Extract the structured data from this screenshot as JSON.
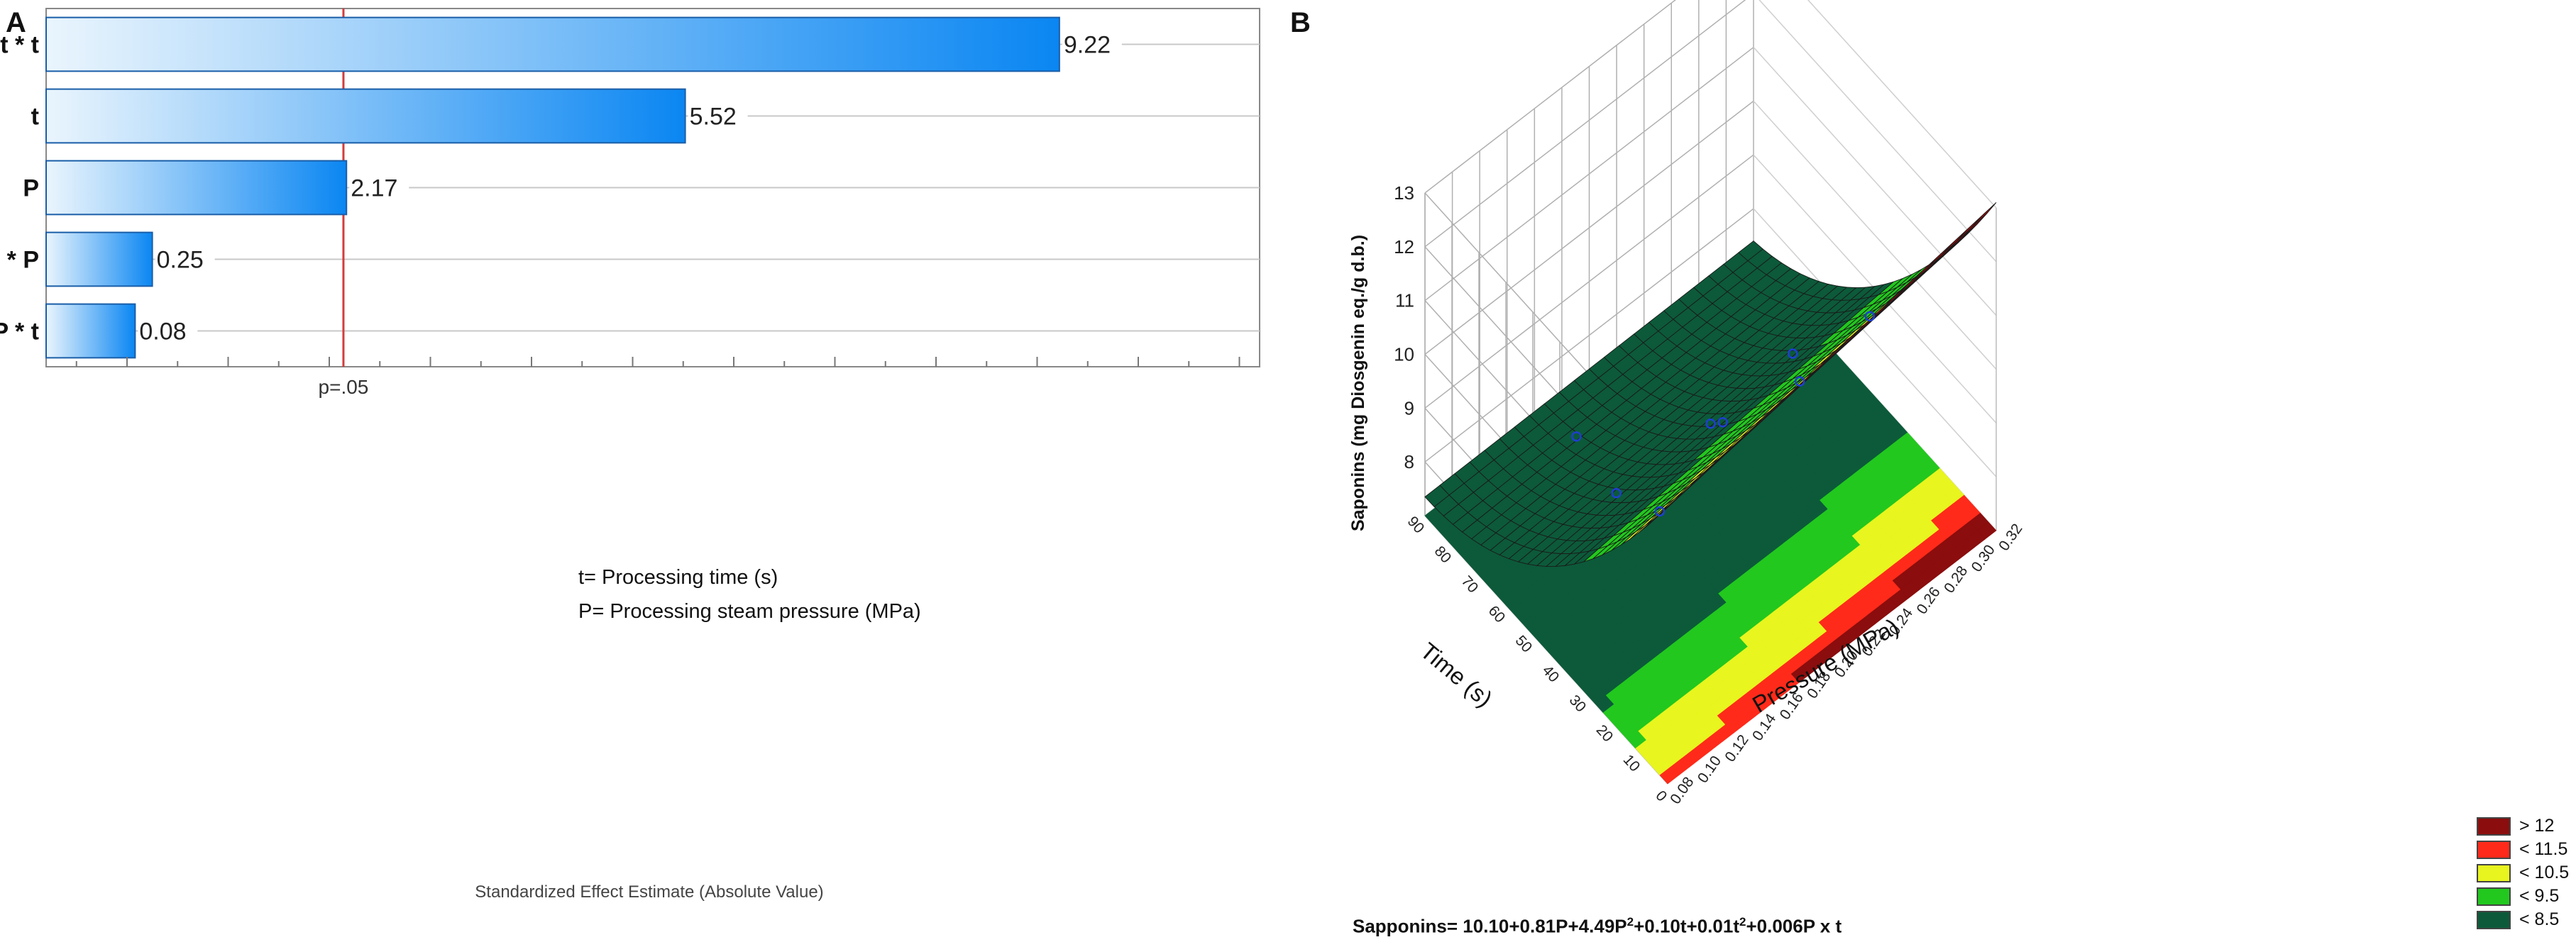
{
  "panels": {
    "a_label": "A",
    "b_label": "B"
  },
  "chart_data": [
    {
      "type": "bar",
      "orientation": "horizontal",
      "title": "",
      "categories": [
        "t * t",
        "t",
        "P",
        "P * P",
        "P * t"
      ],
      "values": [
        9.22,
        5.52,
        2.17,
        0.25,
        0.08
      ],
      "value_labels": [
        "9.22",
        "5.52",
        "2.17",
        "0.25",
        "0.08"
      ],
      "xlabel": "Standardized Effect Estimate (Absolute Value)",
      "ylabel": "",
      "xlim": [
        -0.8,
        11.2
      ],
      "reference_line": {
        "value": 2.14,
        "label": "p=.05",
        "color": "#d33c3c"
      },
      "legend_notes": [
        "t= Processing time (s)",
        "P= Processing steam pressure (MPa)"
      ],
      "grid": true,
      "bar_gradient": [
        "#eaf5fd",
        "#0a86f2"
      ]
    },
    {
      "type": "surface3d",
      "zlabel": "Saponins (mg Diosgenin eq./g d.b.)",
      "xlabel": "Pressure (MPa)",
      "ylabel": "Time (s)",
      "z_ticks": [
        "8",
        "9",
        "10",
        "11",
        "12",
        "13"
      ],
      "x_ticks": [
        "0.08",
        "0.10",
        "0.12",
        "0.14",
        "0.16",
        "0.18",
        "0.20",
        "0.22",
        "0.24",
        "0.26",
        "0.28",
        "0.30",
        "0.32"
      ],
      "y_ticks": [
        "0",
        "10",
        "20",
        "30",
        "40",
        "50",
        "60",
        "70",
        "80",
        "90"
      ],
      "zlim": [
        7,
        13
      ],
      "legend": [
        {
          "label": "> 12",
          "color": "#8b0d0d"
        },
        {
          "label": "< 11.5",
          "color": "#ff2a1a"
        },
        {
          "label": "< 10.5",
          "color": "#e8f51e"
        },
        {
          "label": "< 9.5",
          "color": "#22c81e"
        },
        {
          "label": "< 8.5",
          "color": "#0c5a3a"
        }
      ],
      "observed_points": 8
    }
  ],
  "equation": {
    "prefix": "Sapponins= 10.10+0.81P+4.49P",
    "sup1": "2",
    "mid": "+0.10t+0.01t",
    "sup2": "2",
    "suffix": "+0.006P  x t"
  }
}
